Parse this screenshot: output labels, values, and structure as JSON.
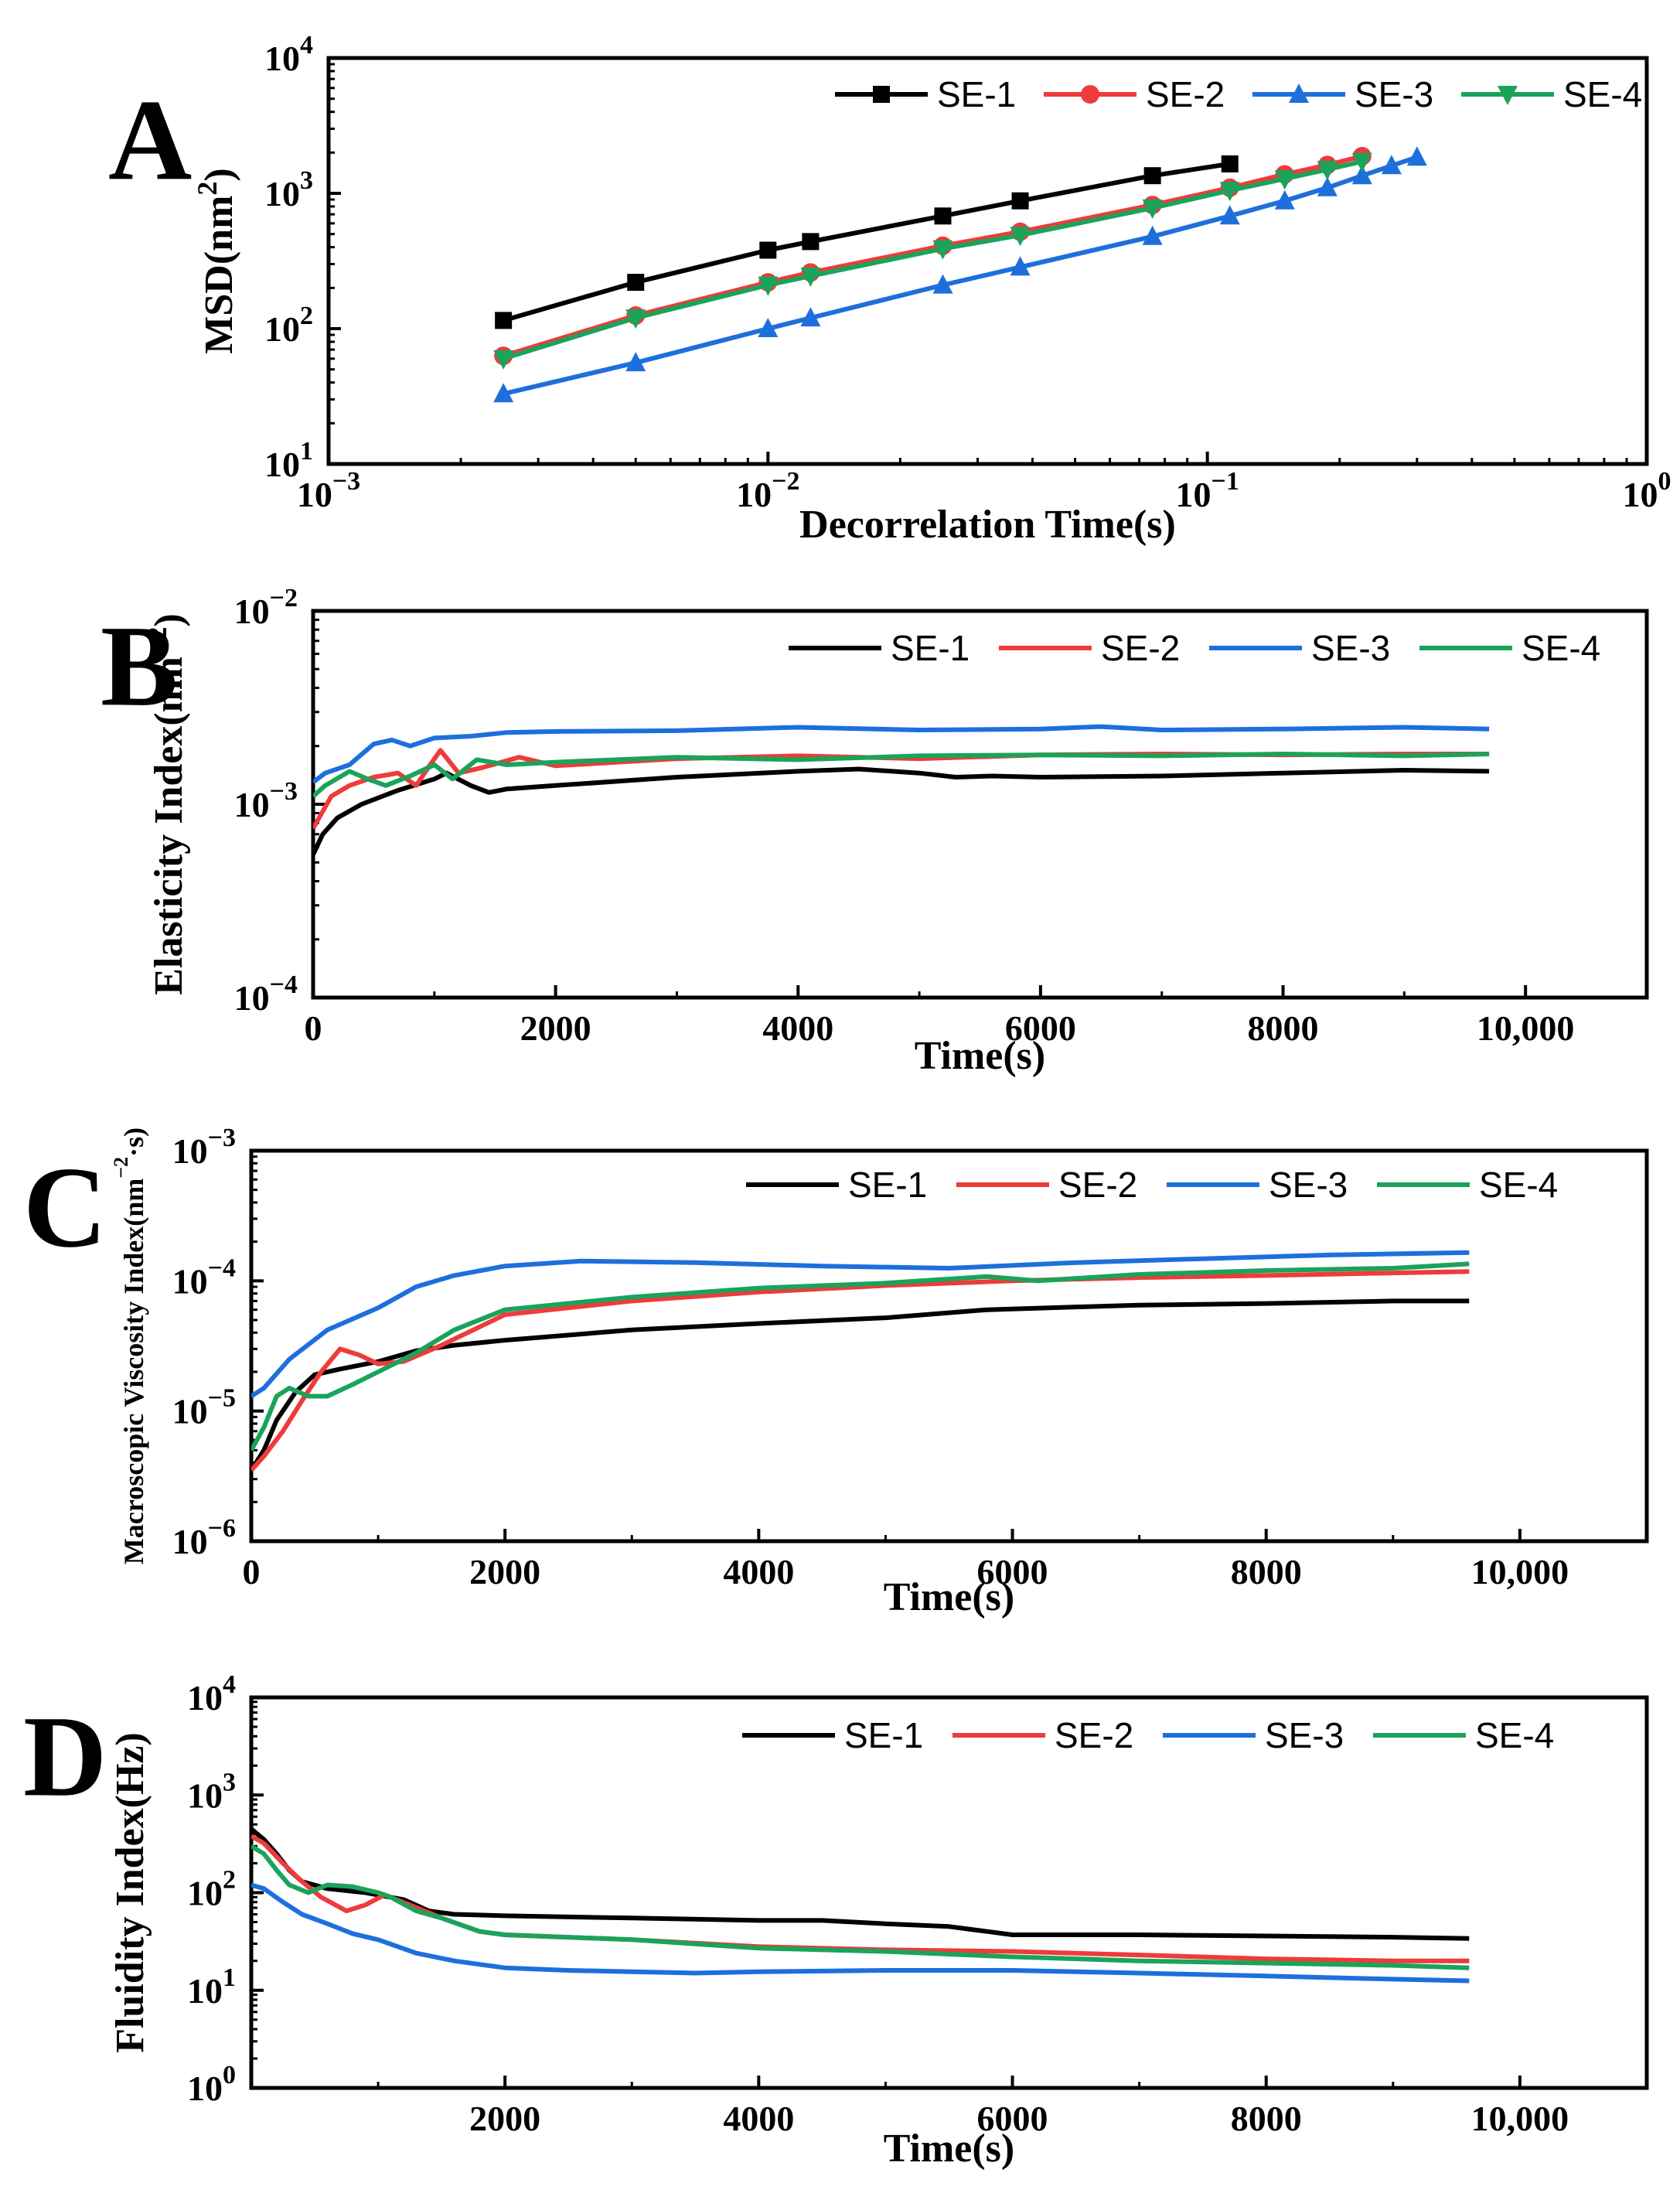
{
  "colors": {
    "SE-1": "#000000",
    "SE-2": "#ee3b3b",
    "SE-3": "#1e6fdc",
    "SE-4": "#1aa35b"
  },
  "chart_data": [
    {
      "panel": "A",
      "type": "line",
      "xscale": "log",
      "yscale": "log",
      "xlim": [
        0.001,
        1
      ],
      "ylim": [
        10,
        10000
      ],
      "xlabel": "Decorrelation Time(s)",
      "ylabel": "MSD(nm",
      "ylabel_sup": "2",
      "ylabel_tail": ")",
      "xticks": [
        {
          "base": "10",
          "exp": "−3",
          "v": 0.001
        },
        {
          "base": "10",
          "exp": "−2",
          "v": 0.01
        },
        {
          "base": "10",
          "exp": "−1",
          "v": 0.1
        },
        {
          "base": "10",
          "exp": "0",
          "v": 1
        }
      ],
      "yticks": [
        {
          "base": "10",
          "exp": "1",
          "v": 10
        },
        {
          "base": "10",
          "exp": "2",
          "v": 100
        },
        {
          "base": "10",
          "exp": "3",
          "v": 1000
        },
        {
          "base": "10",
          "exp": "4",
          "v": 10000
        }
      ],
      "legend_position": "top-right",
      "markers": true,
      "series": [
        {
          "name": "SE-1",
          "marker": "square",
          "x": [
            0.0025,
            0.005,
            0.01,
            0.0125,
            0.025,
            0.0375,
            0.075,
            0.1125
          ],
          "y": [
            115,
            220,
            380,
            440,
            680,
            880,
            1350,
            1650
          ]
        },
        {
          "name": "SE-2",
          "marker": "circle",
          "x": [
            0.0025,
            0.005,
            0.01,
            0.0125,
            0.025,
            0.0375,
            0.075,
            0.1125,
            0.15,
            0.1875,
            0.225
          ],
          "y": [
            63,
            125,
            220,
            260,
            410,
            520,
            820,
            1100,
            1380,
            1620,
            1880
          ]
        },
        {
          "name": "SE-3",
          "marker": "triangle-up",
          "x": [
            0.0025,
            0.005,
            0.01,
            0.0125,
            0.025,
            0.0375,
            0.075,
            0.1125,
            0.15,
            0.1875,
            0.225,
            0.2625,
            0.3
          ],
          "y": [
            33,
            56,
            100,
            120,
            210,
            285,
            480,
            680,
            880,
            1100,
            1350,
            1600,
            1850
          ]
        },
        {
          "name": "SE-4",
          "marker": "triangle-down",
          "x": [
            0.0025,
            0.005,
            0.01,
            0.0125,
            0.025,
            0.0375,
            0.075,
            0.1125,
            0.15,
            0.1875,
            0.225
          ],
          "y": [
            60,
            120,
            210,
            245,
            390,
            490,
            780,
            1050,
            1280,
            1500,
            1720
          ]
        }
      ]
    },
    {
      "panel": "B",
      "type": "line",
      "xscale": "linear",
      "yscale": "log",
      "xlim": [
        0,
        11000
      ],
      "ylim": [
        0.0001,
        0.01
      ],
      "xlabel": "Time(s)",
      "ylabel": "Elasticity Index(nm",
      "ylabel_sup": "−2",
      "ylabel_tail": ")",
      "xticks": [
        {
          "label": "0",
          "v": 0
        },
        {
          "label": "2000",
          "v": 2000
        },
        {
          "label": "4000",
          "v": 4000
        },
        {
          "label": "6000",
          "v": 6000
        },
        {
          "label": "8000",
          "v": 8000
        },
        {
          "label": "10,000",
          "v": 10000
        }
      ],
      "yticks": [
        {
          "base": "10",
          "exp": "−4",
          "v": 0.0001
        },
        {
          "base": "10",
          "exp": "−3",
          "v": 0.001
        },
        {
          "base": "10",
          "exp": "−2",
          "v": 0.01
        }
      ],
      "legend_position": "top-right",
      "markers": false,
      "series": [
        {
          "name": "SE-1",
          "x": [
            0,
            80,
            200,
            400,
            700,
            1000,
            1100,
            1300,
            1450,
            1600,
            2000,
            3000,
            4000,
            4500,
            5000,
            5300,
            5600,
            6000,
            7000,
            8000,
            9000,
            9700
          ],
          "y": [
            0.00055,
            0.0007,
            0.00085,
            0.001,
            0.00118,
            0.00135,
            0.00145,
            0.00125,
            0.00115,
            0.0012,
            0.00125,
            0.00138,
            0.00148,
            0.00152,
            0.00145,
            0.00138,
            0.0014,
            0.00138,
            0.0014,
            0.00145,
            0.0015,
            0.00148
          ]
        },
        {
          "name": "SE-2",
          "x": [
            0,
            150,
            300,
            500,
            700,
            850,
            950,
            1050,
            1200,
            1400,
            1700,
            2000,
            3000,
            4000,
            5000,
            6000,
            7000,
            8000,
            9000,
            9700
          ],
          "y": [
            0.00075,
            0.0011,
            0.00125,
            0.00138,
            0.00145,
            0.00125,
            0.00155,
            0.0019,
            0.00145,
            0.00155,
            0.00175,
            0.00158,
            0.00172,
            0.00178,
            0.00172,
            0.0018,
            0.00182,
            0.0018,
            0.00182,
            0.00182
          ]
        },
        {
          "name": "SE-3",
          "x": [
            0,
            100,
            300,
            500,
            650,
            800,
            1000,
            1300,
            1600,
            2000,
            3000,
            4000,
            5000,
            6000,
            6500,
            7000,
            8000,
            9000,
            9700
          ],
          "y": [
            0.0013,
            0.00145,
            0.0016,
            0.00205,
            0.00215,
            0.002,
            0.0022,
            0.00225,
            0.00235,
            0.00238,
            0.0024,
            0.0025,
            0.00242,
            0.00245,
            0.00252,
            0.00242,
            0.00245,
            0.0025,
            0.00245
          ]
        },
        {
          "name": "SE-4",
          "x": [
            0,
            100,
            300,
            450,
            600,
            800,
            1000,
            1150,
            1350,
            1600,
            2000,
            3000,
            4000,
            5000,
            6000,
            7000,
            8000,
            9000,
            9700
          ],
          "y": [
            0.0011,
            0.00125,
            0.00148,
            0.00135,
            0.00125,
            0.0014,
            0.0016,
            0.00135,
            0.0017,
            0.0016,
            0.00165,
            0.00175,
            0.0017,
            0.00178,
            0.0018,
            0.00178,
            0.00182,
            0.00178,
            0.00182
          ]
        }
      ]
    },
    {
      "panel": "C",
      "type": "line",
      "xscale": "linear",
      "yscale": "log",
      "xlim": [
        0,
        11000
      ],
      "ylim": [
        1e-06,
        0.001
      ],
      "xlabel": "Time(s)",
      "ylabel": "Macroscopic Viscosity Index(nm",
      "ylabel_sup": "−2",
      "ylabel_tail": "·s)",
      "xticks": [
        {
          "label": "0",
          "v": 0
        },
        {
          "label": "2000",
          "v": 2000
        },
        {
          "label": "4000",
          "v": 4000
        },
        {
          "label": "6000",
          "v": 6000
        },
        {
          "label": "8000",
          "v": 8000
        },
        {
          "label": "10,000",
          "v": 10000
        }
      ],
      "yticks": [
        {
          "base": "10",
          "exp": "−6",
          "v": 1e-06
        },
        {
          "base": "10",
          "exp": "−5",
          "v": 1e-05
        },
        {
          "base": "10",
          "exp": "−4",
          "v": 0.0001
        },
        {
          "base": "10",
          "exp": "−3",
          "v": 0.001
        }
      ],
      "legend_position": "top-right",
      "markers": false,
      "series": [
        {
          "name": "SE-1",
          "x": [
            0,
            100,
            200,
            350,
            500,
            700,
            1000,
            1300,
            1600,
            2000,
            3000,
            4000,
            5000,
            5800,
            6500,
            7000,
            8000,
            9000,
            9600
          ],
          "y": [
            3.5e-06,
            5e-06,
            8.5e-06,
            1.4e-05,
            1.9e-05,
            2.1e-05,
            2.4e-05,
            2.9e-05,
            3.2e-05,
            3.5e-05,
            4.2e-05,
            4.7e-05,
            5.2e-05,
            6e-05,
            6.3e-05,
            6.5e-05,
            6.7e-05,
            7e-05,
            7e-05
          ]
        },
        {
          "name": "SE-2",
          "x": [
            0,
            100,
            250,
            400,
            550,
            700,
            850,
            1000,
            1200,
            1500,
            2000,
            3000,
            4000,
            5000,
            6000,
            7000,
            8000,
            9000,
            9600
          ],
          "y": [
            3.5e-06,
            4.5e-06,
            7e-06,
            1.2e-05,
            2e-05,
            3e-05,
            2.7e-05,
            2.3e-05,
            2.4e-05,
            3.2e-05,
            5.5e-05,
            7e-05,
            8.2e-05,
            9.2e-05,
            0.0001,
            0.000106,
            0.00011,
            0.000115,
            0.000118
          ]
        },
        {
          "name": "SE-3",
          "x": [
            0,
            100,
            300,
            600,
            1000,
            1300,
            1600,
            2000,
            2600,
            3500,
            4500,
            5500,
            6500,
            7500,
            8500,
            9600
          ],
          "y": [
            1.3e-05,
            1.5e-05,
            2.5e-05,
            4.2e-05,
            6.2e-05,
            9e-05,
            0.00011,
            0.00013,
            0.000142,
            0.000138,
            0.00013,
            0.000125,
            0.000138,
            0.000148,
            0.000158,
            0.000165
          ]
        },
        {
          "name": "SE-4",
          "x": [
            0,
            100,
            200,
            300,
            450,
            600,
            800,
            1000,
            1300,
            1600,
            2000,
            3000,
            4000,
            5000,
            5800,
            6200,
            7000,
            8000,
            9000,
            9600
          ],
          "y": [
            5e-06,
            7.5e-06,
            1.3e-05,
            1.5e-05,
            1.3e-05,
            1.3e-05,
            1.6e-05,
            2e-05,
            2.8e-05,
            4.2e-05,
            6e-05,
            7.5e-05,
            8.8e-05,
            9.6e-05,
            0.000108,
            0.0001,
            0.000112,
            0.00012,
            0.000125,
            0.000135
          ]
        }
      ]
    },
    {
      "panel": "D",
      "type": "line",
      "xscale": "linear",
      "yscale": "log",
      "xlim": [
        0,
        11000
      ],
      "ylim": [
        1,
        10000
      ],
      "xlabel": "Time(s)",
      "ylabel": "Fluidity Index(Hz)",
      "ylabel_sup": "",
      "ylabel_tail": "",
      "xticks": [
        {
          "label": "2000",
          "v": 2000
        },
        {
          "label": "4000",
          "v": 4000
        },
        {
          "label": "6000",
          "v": 6000
        },
        {
          "label": "8000",
          "v": 8000
        },
        {
          "label": "10,000",
          "v": 10000
        }
      ],
      "yticks": [
        {
          "base": "10",
          "exp": "0",
          "v": 1
        },
        {
          "base": "10",
          "exp": "1",
          "v": 10
        },
        {
          "base": "10",
          "exp": "2",
          "v": 100
        },
        {
          "base": "10",
          "exp": "3",
          "v": 1000
        },
        {
          "base": "10",
          "exp": "4",
          "v": 10000
        }
      ],
      "legend_position": "top-right",
      "markers": false,
      "series": [
        {
          "name": "SE-1",
          "x": [
            0,
            100,
            200,
            300,
            400,
            600,
            900,
            1200,
            1400,
            1600,
            2000,
            3000,
            4000,
            4500,
            5000,
            5500,
            5800,
            6000,
            7000,
            8000,
            9000,
            9600
          ],
          "y": [
            450,
            350,
            250,
            170,
            130,
            110,
            100,
            85,
            65,
            60,
            58,
            55,
            52,
            52,
            48,
            45,
            40,
            37,
            37,
            36,
            35,
            34
          ]
        },
        {
          "name": "SE-2",
          "x": [
            0,
            100,
            250,
            400,
            550,
            750,
            900,
            1050,
            1250,
            1500,
            1800,
            2000,
            3000,
            4000,
            5000,
            6000,
            7000,
            8000,
            9000,
            9600
          ],
          "y": [
            380,
            320,
            200,
            130,
            90,
            65,
            75,
            95,
            75,
            55,
            40,
            37,
            33,
            28,
            26,
            25,
            23,
            21,
            20,
            20
          ]
        },
        {
          "name": "SE-3",
          "x": [
            0,
            100,
            250,
            400,
            600,
            800,
            1000,
            1300,
            1600,
            2000,
            2500,
            3000,
            3500,
            4000,
            5000,
            6000,
            7000,
            8000,
            9000,
            9600
          ],
          "y": [
            120,
            110,
            80,
            60,
            48,
            38,
            33,
            24,
            20,
            17,
            16,
            15.5,
            15,
            15.5,
            16,
            16,
            15,
            14,
            13,
            12.5
          ]
        },
        {
          "name": "SE-4",
          "x": [
            0,
            100,
            200,
            300,
            450,
            600,
            800,
            1000,
            1100,
            1300,
            1500,
            1800,
            2000,
            3000,
            4000,
            5000,
            6000,
            7000,
            8000,
            9000,
            9600
          ],
          "y": [
            300,
            250,
            170,
            120,
            100,
            120,
            115,
            100,
            90,
            65,
            55,
            40,
            37,
            33,
            27,
            25,
            22,
            20,
            19,
            18,
            17
          ]
        }
      ]
    }
  ]
}
